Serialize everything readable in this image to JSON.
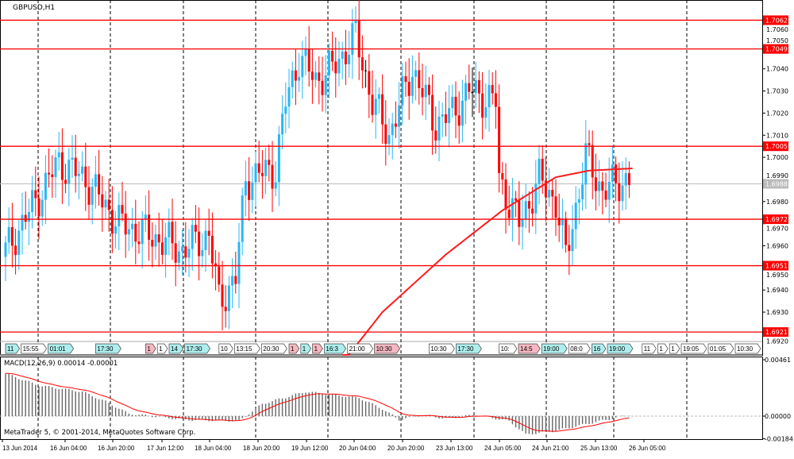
{
  "chart_title": "GBPUSD,H1",
  "copyright": "MetaTrader 5, © 2001-2014, MetaQuotes Software Corp.",
  "colors": {
    "bull": "#29b6f6",
    "bear": "#ff0000",
    "doji": "#000000",
    "level": "#ff0000",
    "ma": "#ff1a1a",
    "current": "#bbbbbb"
  },
  "chart_data": {
    "type": "candlestick",
    "symbol": "GBPUSD",
    "timeframe": "H1",
    "ylim": [
      1.6916,
      1.7064
    ],
    "y_ticks": [
      "1.7060",
      "1.7050",
      "1.7040",
      "1.7030",
      "1.7020",
      "1.7010",
      "1.7000",
      "1.6990",
      "1.6980",
      "1.6970",
      "1.6960",
      "1.6950",
      "1.6940",
      "1.6930",
      "1.6920"
    ],
    "levels": [
      "1.7062",
      "1.7049",
      "1.7005",
      "1.6972",
      "1.6951",
      "1.6921"
    ],
    "current_price": "1.6988",
    "bar_count": 188,
    "price_anchors": [
      [
        0,
        1.6955
      ],
      [
        8,
        1.6975
      ],
      [
        17,
        1.6998
      ],
      [
        25,
        1.699
      ],
      [
        35,
        1.697
      ],
      [
        44,
        1.6965
      ],
      [
        54,
        1.6958
      ],
      [
        62,
        1.6965
      ],
      [
        65,
        1.6935
      ],
      [
        70,
        1.6945
      ],
      [
        73,
        1.699
      ],
      [
        82,
        1.6995
      ],
      [
        85,
        1.7025
      ],
      [
        89,
        1.7045
      ],
      [
        94,
        1.7035
      ],
      [
        99,
        1.704
      ],
      [
        106,
        1.7055
      ],
      [
        111,
        1.7025
      ],
      [
        116,
        1.701
      ],
      [
        123,
        1.704
      ],
      [
        130,
        1.7015
      ],
      [
        135,
        1.702
      ],
      [
        140,
        1.703
      ],
      [
        148,
        1.7025
      ],
      [
        149,
        1.699
      ],
      [
        155,
        1.697
      ],
      [
        161,
        1.699
      ],
      [
        166,
        1.698
      ],
      [
        169,
        1.6955
      ],
      [
        175,
        1.7
      ],
      [
        180,
        1.6985
      ],
      [
        187,
        1.699
      ]
    ],
    "ma_anchors": [
      [
        101,
        1.6907
      ],
      [
        113,
        1.693
      ],
      [
        132,
        1.6956
      ],
      [
        149,
        1.6976
      ],
      [
        165,
        1.6991
      ],
      [
        175,
        1.6994
      ],
      [
        188,
        1.6995
      ]
    ],
    "macd": {
      "label": "MACD(12,26,9) 0.00014 -0.00001",
      "ylim": [
        -0.00184,
        0.00461
      ],
      "ticks": [
        "0.00461",
        "0.00000",
        "-0.00184"
      ],
      "hist_anchors": [
        [
          0,
          0.0035
        ],
        [
          10,
          0.0025
        ],
        [
          23,
          0.002
        ],
        [
          30,
          0.0012
        ],
        [
          37,
          0.0002
        ],
        [
          54,
          -0.0003
        ],
        [
          70,
          -0.0004
        ],
        [
          77,
          0.001
        ],
        [
          90,
          0.002
        ],
        [
          106,
          0.0015
        ],
        [
          113,
          0.0006
        ],
        [
          118,
          -0.0003
        ],
        [
          125,
          0.0001
        ],
        [
          132,
          -0.0002
        ],
        [
          141,
          0.0001
        ],
        [
          151,
          -0.0004
        ],
        [
          156,
          -0.0015
        ],
        [
          165,
          -0.0012
        ],
        [
          175,
          -0.0006
        ],
        [
          187,
          0.0001
        ]
      ]
    },
    "x_labels": [
      "13 Jun 2014",
      "16 Jun 04:00",
      "16 Jun 20:00",
      "17 Jun 12:00",
      "18 Jun 04:00",
      "18 Jun 20:00",
      "19 Jun 12:00",
      "20 Jun 04:00",
      "20 Jun 20:00",
      "23 Jun 13:00",
      "24 Jun 05:00",
      "24 Jun 21:00",
      "25 Jun 13:00",
      "26 Jun 05:00"
    ]
  },
  "events": [
    {
      "label": "11",
      "color": "#aeeeee",
      "bar": 0
    },
    {
      "label": "15:55",
      "color": "#ffffff",
      "bar": 4
    },
    {
      "label": "01:01",
      "color": "#aeeeee",
      "bar": 12
    },
    {
      "label": "17:30",
      "color": "#aeeeee",
      "bar": 27
    },
    {
      "label": "1",
      "color": "#f5b7c0",
      "bar": 42
    },
    {
      "label": "1",
      "color": "#ffffff",
      "bar": 44
    },
    {
      "label": "14",
      "color": "#aeeeee",
      "bar": 46
    },
    {
      "label": "17:30",
      "color": "#aeeeee",
      "bar": 48
    },
    {
      "label": "10",
      "color": "#ffffff",
      "bar": 64
    },
    {
      "label": "13:15",
      "color": "#ffffff",
      "bar": 67
    },
    {
      "label": "20:30",
      "color": "#ffffff",
      "bar": 72
    },
    {
      "label": "1",
      "color": "#f5b7c0",
      "bar": 85
    },
    {
      "label": "1",
      "color": "#aeeeee",
      "bar": 87
    },
    {
      "label": "1",
      "color": "#f5b7c0",
      "bar": 89
    },
    {
      "label": "16:3",
      "color": "#aeeeee",
      "bar": 91
    },
    {
      "label": "21:00",
      "color": "#ffffff",
      "bar": 95
    },
    {
      "label": "10:30",
      "color": "#f5b7c0",
      "bar": 107
    },
    {
      "label": "10:30",
      "color": "#ffffff",
      "bar": 127
    },
    {
      "label": "17:30",
      "color": "#aeeeee",
      "bar": 133
    },
    {
      "label": "10:",
      "color": "#ffffff",
      "bar": 148
    },
    {
      "label": "14:5",
      "color": "#f5b7c0",
      "bar": 152
    },
    {
      "label": "19:00",
      "color": "#aeeeee",
      "bar": 156
    },
    {
      "label": "08:0",
      "color": "#ffffff",
      "bar": 166
    },
    {
      "label": "16",
      "color": "#aeeeee",
      "bar": 174
    },
    {
      "label": "19:00",
      "color": "#aeeeee",
      "bar": 177
    },
    {
      "label": "11",
      "color": "#ffffff",
      "bar": 193
    },
    {
      "label": "1",
      "color": "#ffffff",
      "bar": 196
    },
    {
      "label": "1",
      "color": "#ffffff",
      "bar": 198
    },
    {
      "label": "19:05",
      "color": "#ffffff",
      "bar": 200
    },
    {
      "label": "01:05",
      "color": "#ffffff",
      "bar": 207
    },
    {
      "label": "10:30",
      "color": "#ffffff",
      "bar": 214
    }
  ]
}
